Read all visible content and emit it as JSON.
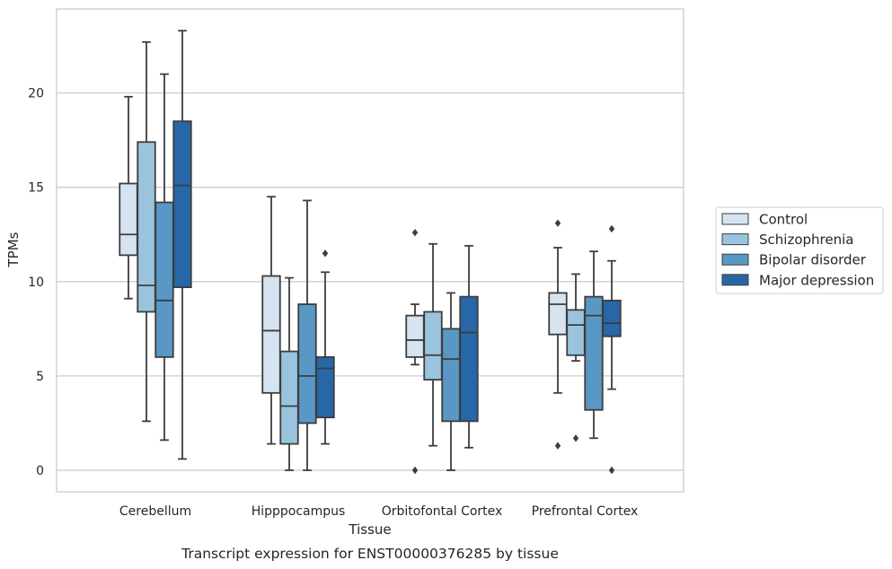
{
  "chart_data": {
    "type": "box",
    "xlabel": "Tissue",
    "ylabel": "TPMs",
    "caption": "Transcript expression for ENST00000376285 by tissue",
    "ylim": [
      -1.1,
      24.5
    ],
    "yticks": [
      0,
      5,
      10,
      15,
      20
    ],
    "grid": "horizontal",
    "legend_position": "right",
    "categories": [
      "Cerebellum",
      "Hipppocampus",
      "Orbitofontal Cortex",
      "Prefrontal Cortex"
    ],
    "series": [
      {
        "name": "Control",
        "color": "#d6e4f2",
        "boxes": [
          {
            "whislo": 9.1,
            "q1": 11.4,
            "med": 12.5,
            "q3": 15.2,
            "whishi": 19.8,
            "fliers": []
          },
          {
            "whislo": 1.4,
            "q1": 4.1,
            "med": 7.4,
            "q3": 10.3,
            "whishi": 14.5,
            "fliers": []
          },
          {
            "whislo": 5.6,
            "q1": 6.0,
            "med": 6.9,
            "q3": 8.2,
            "whishi": 8.8,
            "fliers": [
              0.0,
              12.6
            ]
          },
          {
            "whislo": 4.1,
            "q1": 7.2,
            "med": 8.8,
            "q3": 9.4,
            "whishi": 11.8,
            "fliers": [
              1.3,
              13.1
            ]
          }
        ]
      },
      {
        "name": "Schizophrenia",
        "color": "#9ac4de",
        "boxes": [
          {
            "whislo": 2.6,
            "q1": 8.4,
            "med": 9.8,
            "q3": 17.4,
            "whishi": 22.7,
            "fliers": []
          },
          {
            "whislo": 0.0,
            "q1": 1.4,
            "med": 3.4,
            "q3": 6.3,
            "whishi": 10.2,
            "fliers": []
          },
          {
            "whislo": 1.3,
            "q1": 4.8,
            "med": 6.1,
            "q3": 8.4,
            "whishi": 12.0,
            "fliers": []
          },
          {
            "whislo": 5.8,
            "q1": 6.1,
            "med": 7.7,
            "q3": 8.5,
            "whishi": 10.4,
            "fliers": [
              1.7
            ]
          }
        ]
      },
      {
        "name": "Bipolar disorder",
        "color": "#5998c5",
        "boxes": [
          {
            "whislo": 1.6,
            "q1": 6.0,
            "med": 9.0,
            "q3": 14.2,
            "whishi": 21.0,
            "fliers": []
          },
          {
            "whislo": 0.0,
            "q1": 2.5,
            "med": 5.0,
            "q3": 8.8,
            "whishi": 14.3,
            "fliers": []
          },
          {
            "whislo": 0.0,
            "q1": 2.6,
            "med": 5.9,
            "q3": 7.5,
            "whishi": 9.4,
            "fliers": []
          },
          {
            "whislo": 1.7,
            "q1": 3.2,
            "med": 8.2,
            "q3": 9.2,
            "whishi": 11.6,
            "fliers": []
          }
        ]
      },
      {
        "name": "Major depression",
        "color": "#2767a8",
        "boxes": [
          {
            "whislo": 0.6,
            "q1": 9.7,
            "med": 15.1,
            "q3": 18.5,
            "whishi": 23.3,
            "fliers": []
          },
          {
            "whislo": 1.4,
            "q1": 2.8,
            "med": 5.4,
            "q3": 6.0,
            "whishi": 10.5,
            "fliers": [
              11.5
            ]
          },
          {
            "whislo": 1.2,
            "q1": 2.6,
            "med": 7.3,
            "q3": 9.2,
            "whishi": 11.9,
            "fliers": []
          },
          {
            "whislo": 4.3,
            "q1": 7.1,
            "med": 7.8,
            "q3": 9.0,
            "whishi": 11.1,
            "fliers": [
              0.0,
              12.8
            ]
          }
        ]
      }
    ]
  }
}
